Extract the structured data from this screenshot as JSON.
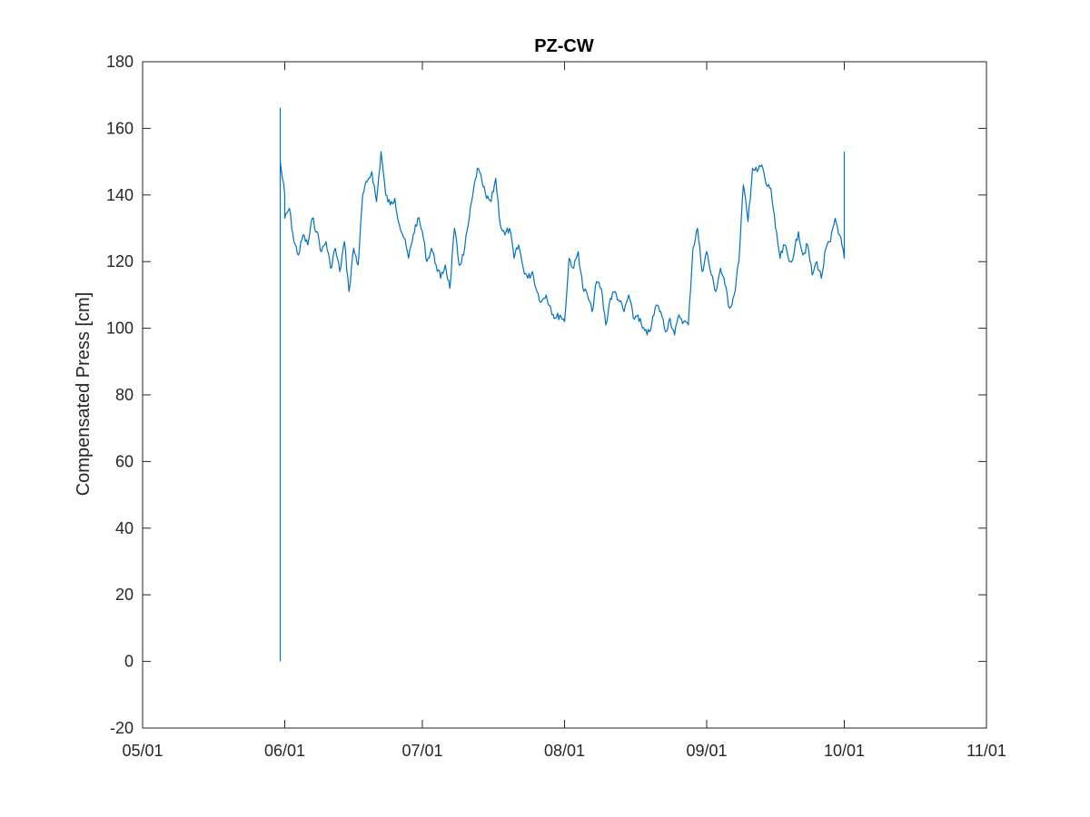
{
  "chart_data": {
    "type": "line",
    "title": "PZ-CW",
    "xlabel": "",
    "ylabel": "Compensated Press [cm]",
    "x_tick_labels": [
      "05/01",
      "06/01",
      "07/01",
      "08/01",
      "09/01",
      "10/01",
      "11/01"
    ],
    "x_ticks": [
      "05-01",
      "06-01",
      "07-01",
      "08-01",
      "09-01",
      "10-01",
      "11-01"
    ],
    "xlim": [
      "05-01",
      "11-01"
    ],
    "ylim": [
      -20,
      180
    ],
    "y_ticks": [
      -20,
      0,
      20,
      40,
      60,
      80,
      100,
      120,
      140,
      160,
      180
    ],
    "grid": false,
    "line_color": "#0072BD",
    "series": [
      {
        "x": [
          "05-31",
          "05-31",
          "05-31",
          "06-01",
          "06-01",
          "06-02",
          "06-03",
          "06-04",
          "06-05",
          "06-06",
          "06-07",
          "06-08",
          "06-09",
          "06-10",
          "06-11",
          "06-12",
          "06-13",
          "06-14",
          "06-15",
          "06-16",
          "06-17",
          "06-18",
          "06-19",
          "06-20",
          "06-21",
          "06-22",
          "06-23",
          "06-24",
          "06-25",
          "06-26",
          "06-27",
          "06-28",
          "06-29",
          "06-30",
          "07-01",
          "07-02",
          "07-03",
          "07-04",
          "07-05",
          "07-06",
          "07-07",
          "07-08",
          "07-09",
          "07-10",
          "07-11",
          "07-12",
          "07-13",
          "07-14",
          "07-15",
          "07-16",
          "07-17",
          "07-18",
          "07-19",
          "07-20",
          "07-21",
          "07-22",
          "07-23",
          "07-24",
          "07-25",
          "07-26",
          "07-27",
          "07-28",
          "07-29",
          "07-30",
          "07-31",
          "08-01",
          "08-02",
          "08-03",
          "08-04",
          "08-05",
          "08-06",
          "08-07",
          "08-08",
          "08-09",
          "08-10",
          "08-11",
          "08-12",
          "08-13",
          "08-14",
          "08-15",
          "08-16",
          "08-17",
          "08-18",
          "08-19",
          "08-20",
          "08-21",
          "08-22",
          "08-23",
          "08-24",
          "08-25",
          "08-26",
          "08-27",
          "08-28",
          "08-29",
          "08-30",
          "08-31",
          "09-01",
          "09-02",
          "09-03",
          "09-04",
          "09-05",
          "09-06",
          "09-07",
          "09-08",
          "09-09",
          "09-10",
          "09-11",
          "09-12",
          "09-13",
          "09-14",
          "09-15",
          "09-16",
          "09-17",
          "09-18",
          "09-19",
          "09-20",
          "09-21",
          "09-22",
          "09-23",
          "09-24",
          "09-25",
          "09-26",
          "09-27",
          "09-28",
          "09-29",
          "09-30",
          "10-01",
          "10-01"
        ],
        "y": [
          0,
          166,
          150,
          140,
          133,
          136,
          126,
          122,
          128,
          125,
          133,
          129,
          123,
          126,
          118,
          124,
          117,
          126,
          111,
          124,
          119,
          140,
          144,
          147,
          138,
          153,
          140,
          137,
          139,
          131,
          127,
          121,
          128,
          133,
          129,
          120,
          124,
          119,
          115,
          119,
          112,
          130,
          119,
          122,
          131,
          140,
          148,
          144,
          139,
          138,
          145,
          131,
          128,
          130,
          121,
          125,
          118,
          115,
          117,
          111,
          108,
          110,
          106,
          103,
          104,
          102,
          121,
          118,
          123,
          112,
          110,
          105,
          114,
          112,
          101,
          109,
          111,
          108,
          105,
          110,
          103,
          104,
          100,
          98,
          101,
          107,
          105,
          99,
          103,
          98,
          104,
          102,
          101,
          124,
          130,
          117,
          123,
          116,
          111,
          118,
          113,
          106,
          110,
          120,
          143,
          132,
          148,
          147,
          149,
          143,
          142,
          130,
          121,
          125,
          120,
          122,
          129,
          122,
          125,
          116,
          120,
          115,
          124,
          126,
          133,
          128,
          121,
          153
        ]
      }
    ]
  }
}
